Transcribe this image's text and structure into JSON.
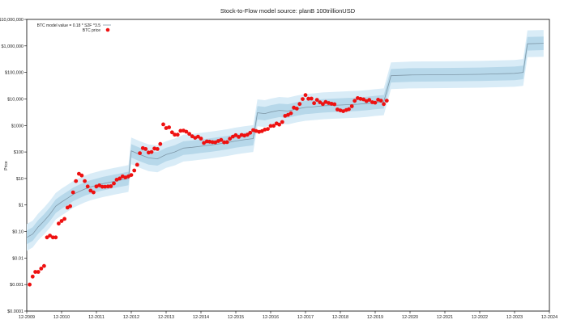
{
  "chart_data": {
    "type": "scatter",
    "title": "Stock-to-Flow model     source: planB 100trillionUSD",
    "xlabel": "",
    "ylabel": "Price",
    "y_scale": "log",
    "ylim": [
      0.0001,
      10000000
    ],
    "xlim": [
      "2009-12",
      "2024-12"
    ],
    "x_ticks": [
      "12-2009",
      "12-2010",
      "12-2011",
      "12-2012",
      "12-2013",
      "12-2014",
      "12-2015",
      "12-2016",
      "12-2017",
      "12-2018",
      "12-2019",
      "12-2020",
      "12-2021",
      "12-2022",
      "12-2023",
      "12-2024"
    ],
    "y_ticks": [
      {
        "value": 0.0001,
        "label": "$0.0001"
      },
      {
        "value": 0.001,
        "label": "$0.001"
      },
      {
        "value": 0.01,
        "label": "$0.01"
      },
      {
        "value": 0.1,
        "label": "$0.10"
      },
      {
        "value": 1,
        "label": "$1"
      },
      {
        "value": 10,
        "label": "$10"
      },
      {
        "value": 100,
        "label": "$100"
      },
      {
        "value": 1000,
        "label": "$1000"
      },
      {
        "value": 10000,
        "label": "$10,000"
      },
      {
        "value": 100000,
        "label": "$100,000"
      },
      {
        "value": 1000000,
        "label": "$1,000,000"
      },
      {
        "value": 10000000,
        "label": "$10,000,000"
      }
    ],
    "grid": false,
    "legend_position": "top-left",
    "colors": {
      "model_line": "#7f98a8",
      "band_inner": "#b7d8ea",
      "band_outer": "#d9ecf7",
      "price_dots": "#ee1111"
    },
    "series": [
      {
        "name": "BTC model value = 0.18 * S2F ^3.5",
        "kind": "line",
        "points": [
          [
            "2009-12-01",
            0.06
          ],
          [
            "2010-02-01",
            0.08
          ],
          [
            "2010-04-01",
            0.15
          ],
          [
            "2010-06-01",
            0.25
          ],
          [
            "2010-08-01",
            0.45
          ],
          [
            "2010-10-01",
            0.9
          ],
          [
            "2010-12-01",
            1.3
          ],
          [
            "2011-02-01",
            1.8
          ],
          [
            "2011-04-01",
            2.5
          ],
          [
            "2011-06-01",
            3.2
          ],
          [
            "2011-08-01",
            4
          ],
          [
            "2011-10-01",
            4.8
          ],
          [
            "2011-12-01",
            5.5
          ],
          [
            "2012-02-01",
            6.3
          ],
          [
            "2012-04-01",
            7
          ],
          [
            "2012-06-01",
            7.8
          ],
          [
            "2012-08-01",
            8.6
          ],
          [
            "2012-10-01",
            9.5
          ],
          [
            "2012-11-01",
            10
          ],
          [
            "2012-12-01",
            110
          ],
          [
            "2013-03-01",
            80
          ],
          [
            "2013-06-01",
            60
          ],
          [
            "2013-09-01",
            55
          ],
          [
            "2013-12-01",
            80
          ],
          [
            "2014-03-01",
            100
          ],
          [
            "2014-06-01",
            140
          ],
          [
            "2014-09-01",
            150
          ],
          [
            "2014-12-01",
            165
          ],
          [
            "2015-03-01",
            180
          ],
          [
            "2015-06-01",
            200
          ],
          [
            "2015-09-01",
            225
          ],
          [
            "2015-12-01",
            260
          ],
          [
            "2016-03-01",
            290
          ],
          [
            "2016-06-01",
            320
          ],
          [
            "2016-07-15",
            3000
          ],
          [
            "2016-10-01",
            2800
          ],
          [
            "2016-12-01",
            3200
          ],
          [
            "2017-03-01",
            3700
          ],
          [
            "2017-06-01",
            3500
          ],
          [
            "2017-09-01",
            4200
          ],
          [
            "2017-12-01",
            4800
          ],
          [
            "2018-03-01",
            5100
          ],
          [
            "2018-06-01",
            5500
          ],
          [
            "2018-09-01",
            5700
          ],
          [
            "2018-12-01",
            5900
          ],
          [
            "2019-03-01",
            6100
          ],
          [
            "2019-06-01",
            6300
          ],
          [
            "2019-09-01",
            6700
          ],
          [
            "2019-12-01",
            7300
          ],
          [
            "2020-03-01",
            7800
          ],
          [
            "2020-05-15",
            75000
          ],
          [
            "2020-12-01",
            80000
          ],
          [
            "2021-12-01",
            82000
          ],
          [
            "2022-12-01",
            85000
          ],
          [
            "2023-12-01",
            92000
          ],
          [
            "2024-03-01",
            100000
          ],
          [
            "2024-04-15",
            1200000
          ],
          [
            "2024-10-01",
            1250000
          ]
        ]
      },
      {
        "name": "BTC price",
        "kind": "scatter",
        "points": [
          [
            "2010-01-01",
            0.001
          ],
          [
            "2010-02-01",
            0.002
          ],
          [
            "2010-03-01",
            0.003
          ],
          [
            "2010-04-01",
            0.003
          ],
          [
            "2010-05-01",
            0.004
          ],
          [
            "2010-06-01",
            0.005
          ],
          [
            "2010-07-01",
            0.06
          ],
          [
            "2010-08-01",
            0.07
          ],
          [
            "2010-09-01",
            0.06
          ],
          [
            "2010-10-01",
            0.06
          ],
          [
            "2010-11-01",
            0.2
          ],
          [
            "2010-12-01",
            0.25
          ],
          [
            "2011-01-01",
            0.3
          ],
          [
            "2011-02-01",
            0.8
          ],
          [
            "2011-03-01",
            0.9
          ],
          [
            "2011-04-01",
            3
          ],
          [
            "2011-05-01",
            8
          ],
          [
            "2011-06-01",
            15
          ],
          [
            "2011-07-01",
            13
          ],
          [
            "2011-08-01",
            8
          ],
          [
            "2011-09-01",
            5
          ],
          [
            "2011-10-01",
            3.5
          ],
          [
            "2011-11-01",
            3
          ],
          [
            "2011-12-01",
            5
          ],
          [
            "2012-01-01",
            5.5
          ],
          [
            "2012-02-01",
            4.9
          ],
          [
            "2012-03-01",
            4.9
          ],
          [
            "2012-04-01",
            5
          ],
          [
            "2012-05-01",
            5.1
          ],
          [
            "2012-06-01",
            6.5
          ],
          [
            "2012-07-01",
            9
          ],
          [
            "2012-08-01",
            10
          ],
          [
            "2012-09-01",
            12
          ],
          [
            "2012-10-01",
            11
          ],
          [
            "2012-11-01",
            12
          ],
          [
            "2012-12-01",
            13.5
          ],
          [
            "2013-01-01",
            20
          ],
          [
            "2013-02-01",
            33
          ],
          [
            "2013-03-01",
            90
          ],
          [
            "2013-04-01",
            140
          ],
          [
            "2013-05-01",
            130
          ],
          [
            "2013-06-01",
            95
          ],
          [
            "2013-07-01",
            100
          ],
          [
            "2013-08-01",
            135
          ],
          [
            "2013-09-01",
            130
          ],
          [
            "2013-10-01",
            200
          ],
          [
            "2013-11-01",
            1100
          ],
          [
            "2013-12-01",
            800
          ],
          [
            "2014-01-01",
            850
          ],
          [
            "2014-02-01",
            550
          ],
          [
            "2014-03-01",
            450
          ],
          [
            "2014-04-01",
            450
          ],
          [
            "2014-05-01",
            630
          ],
          [
            "2014-06-01",
            640
          ],
          [
            "2014-07-01",
            580
          ],
          [
            "2014-08-01",
            480
          ],
          [
            "2014-09-01",
            390
          ],
          [
            "2014-10-01",
            340
          ],
          [
            "2014-11-01",
            380
          ],
          [
            "2014-12-01",
            320
          ],
          [
            "2015-01-01",
            220
          ],
          [
            "2015-02-01",
            250
          ],
          [
            "2015-03-01",
            245
          ],
          [
            "2015-04-01",
            235
          ],
          [
            "2015-05-01",
            230
          ],
          [
            "2015-06-01",
            260
          ],
          [
            "2015-07-01",
            285
          ],
          [
            "2015-08-01",
            230
          ],
          [
            "2015-09-01",
            235
          ],
          [
            "2015-10-01",
            315
          ],
          [
            "2015-11-01",
            380
          ],
          [
            "2015-12-01",
            430
          ],
          [
            "2016-01-01",
            370
          ],
          [
            "2016-02-01",
            440
          ],
          [
            "2016-03-01",
            415
          ],
          [
            "2016-04-01",
            450
          ],
          [
            "2016-05-01",
            530
          ],
          [
            "2016-06-01",
            670
          ],
          [
            "2016-07-01",
            620
          ],
          [
            "2016-08-01",
            575
          ],
          [
            "2016-09-01",
            610
          ],
          [
            "2016-10-01",
            700
          ],
          [
            "2016-11-01",
            740
          ],
          [
            "2016-12-01",
            960
          ],
          [
            "2017-01-01",
            970
          ],
          [
            "2017-02-01",
            1190
          ],
          [
            "2017-03-01",
            1080
          ],
          [
            "2017-04-01",
            1350
          ],
          [
            "2017-05-01",
            2300
          ],
          [
            "2017-06-01",
            2500
          ],
          [
            "2017-07-01",
            2875
          ],
          [
            "2017-08-01",
            4700
          ],
          [
            "2017-09-01",
            4340
          ],
          [
            "2017-10-01",
            6470
          ],
          [
            "2017-11-01",
            9900
          ],
          [
            "2017-12-01",
            14000
          ],
          [
            "2018-01-01",
            10200
          ],
          [
            "2018-02-01",
            10300
          ],
          [
            "2018-03-01",
            6900
          ],
          [
            "2018-04-01",
            9200
          ],
          [
            "2018-05-01",
            7500
          ],
          [
            "2018-06-01",
            6400
          ],
          [
            "2018-07-01",
            7700
          ],
          [
            "2018-08-01",
            7000
          ],
          [
            "2018-09-01",
            6600
          ],
          [
            "2018-10-01",
            6300
          ],
          [
            "2018-11-01",
            4000
          ],
          [
            "2018-12-01",
            3700
          ],
          [
            "2019-01-01",
            3450
          ],
          [
            "2019-02-01",
            3800
          ],
          [
            "2019-03-01",
            4100
          ],
          [
            "2019-04-01",
            5300
          ],
          [
            "2019-05-01",
            8500
          ],
          [
            "2019-06-01",
            10800
          ],
          [
            "2019-07-01",
            10100
          ],
          [
            "2019-08-01",
            9600
          ],
          [
            "2019-09-01",
            8300
          ],
          [
            "2019-10-01",
            9200
          ],
          [
            "2019-11-01",
            7550
          ],
          [
            "2019-12-01",
            7200
          ],
          [
            "2020-01-01",
            9350
          ],
          [
            "2020-02-01",
            8600
          ],
          [
            "2020-03-01",
            6400
          ],
          [
            "2020-04-01",
            8600
          ]
        ]
      }
    ]
  }
}
